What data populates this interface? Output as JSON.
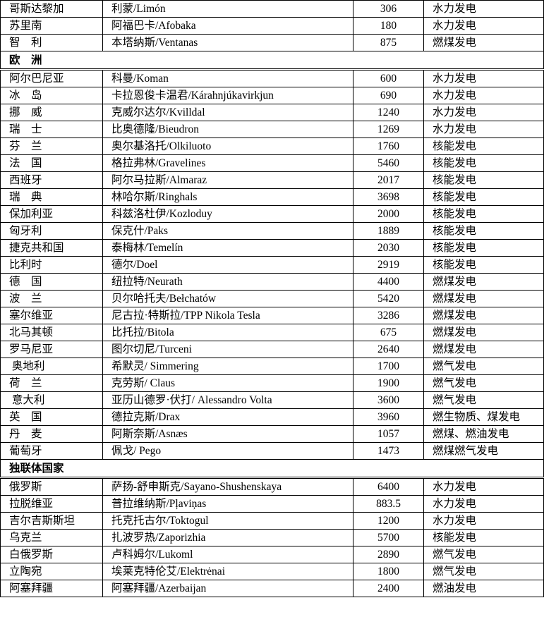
{
  "table": {
    "sections": [
      {
        "rows": [
          [
            "哥斯达黎加",
            "利蒙/Limón",
            306,
            "水力发电"
          ],
          [
            "苏里南",
            "阿福巴卡/Afobaka",
            180,
            "水力发电"
          ],
          [
            "智　利",
            "本塔纳斯/Ventanas",
            875,
            "燃煤发电"
          ]
        ]
      },
      {
        "title": "欧　洲",
        "rows": [
          [
            "阿尔巴尼亚",
            "科曼/Koman",
            600,
            "水力发电"
          ],
          [
            "冰　岛",
            "卡拉恩俊卡温君/Kárahnjúkavirkjun",
            690,
            "水力发电"
          ],
          [
            "挪　威",
            "克威尔达尔/Kvilldal",
            1240,
            "水力发电"
          ],
          [
            "瑞　士",
            "比奥德隆/Bieudron",
            1269,
            "水力发电"
          ],
          [
            "芬　兰",
            "奥尔基洛托/Olkiluoto",
            1760,
            "核能发电"
          ],
          [
            "法　国",
            "格拉弗林/Gravelines",
            5460,
            "核能发电"
          ],
          [
            "西班牙",
            "阿尔马拉斯/Almaraz",
            2017,
            "核能发电"
          ],
          [
            "瑞　典",
            "林哈尔斯/Ringhals",
            3698,
            "核能发电"
          ],
          [
            "保加利亚",
            "科兹洛杜伊/Kozloduy",
            2000,
            "核能发电"
          ],
          [
            "匈牙利",
            "保克什/Paks",
            1889,
            "核能发电"
          ],
          [
            "捷克共和国",
            "泰梅林/Temelín",
            2030,
            "核能发电"
          ],
          [
            "比利时",
            "德尔/Doel",
            2919,
            "核能发电"
          ],
          [
            "德　国",
            "纽拉特/Neurath",
            4400,
            "燃煤发电"
          ],
          [
            "波　兰",
            "贝尔哈托夫/Bełchatów",
            5420,
            "燃煤发电"
          ],
          [
            "塞尔维亚",
            "尼古拉·特斯拉/TPP Nikola Tesla",
            3286,
            "燃煤发电"
          ],
          [
            "北马其顿",
            "比托拉/Bitola",
            675,
            "燃煤发电"
          ],
          [
            "罗马尼亚",
            "图尔切尼/Turceni",
            2640,
            "燃煤发电"
          ],
          [
            " 奥地利",
            "希默灵/ Simmering",
            1700,
            "燃气发电"
          ],
          [
            "荷　兰",
            "克劳斯/ Claus",
            1900,
            "燃气发电"
          ],
          [
            " 意大利",
            "亚历山德罗·伏打/ Alessandro Volta",
            3600,
            "燃气发电"
          ],
          [
            "英　国",
            "德拉克斯/Drax",
            3960,
            "燃生物质、煤发电"
          ],
          [
            "丹　麦",
            "阿斯奈斯/Asnæs",
            1057,
            "燃煤、燃油发电"
          ],
          [
            "葡萄牙",
            "佩戈/ Pego",
            1473,
            "燃煤燃气发电"
          ]
        ]
      },
      {
        "title": "独联体国家",
        "rows": [
          [
            "俄罗斯",
            "萨扬-舒申斯克/Sayano-Shushenskaya",
            6400,
            "水力发电"
          ],
          [
            "拉脱维亚",
            "普拉维纳斯/Pļaviņas",
            883.5,
            "水力发电"
          ],
          [
            "吉尔吉斯斯坦",
            "托克托古尔/Toktogul",
            1200,
            "水力发电"
          ],
          [
            "乌克兰",
            "扎波罗热/Zaporizhia",
            5700,
            "核能发电"
          ],
          [
            "白俄罗斯",
            "卢科姆尔/Lukoml",
            2890,
            "燃气发电"
          ],
          [
            "立陶宛",
            "埃莱克特伦艾/Elektrėnai",
            1800,
            "燃气发电"
          ],
          [
            "阿塞拜疆",
            "阿塞拜疆/Azerbaijan",
            2400,
            "燃油发电"
          ]
        ]
      }
    ]
  }
}
